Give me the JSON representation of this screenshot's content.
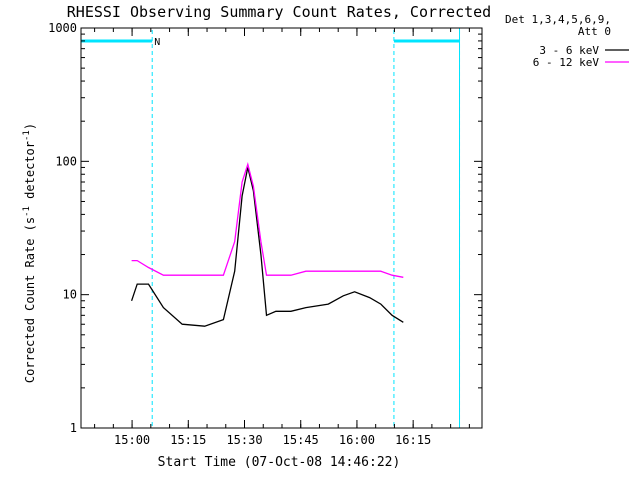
{
  "chart_data": {
    "type": "line",
    "title": "RHESSI Observing Summary Count Rates, Corrected",
    "xlabel": "Start Time (07-Oct-08 14:46:22)",
    "ylabel": "Corrected Count Rate (s⁻¹ detector⁻¹)",
    "ylabel_parts": {
      "a": "Corrected Count Rate (s",
      "b": "-1",
      "c": " detector",
      "d": "-1",
      "e": ")"
    },
    "y_scale": "log",
    "ylim": [
      1,
      1000
    ],
    "xlim_minutes": [
      0,
      107
    ],
    "xticks": [
      {
        "label": "15:00",
        "minute": 13.63
      },
      {
        "label": "15:15",
        "minute": 28.63
      },
      {
        "label": "15:30",
        "minute": 43.63
      },
      {
        "label": "15:45",
        "minute": 58.63
      },
      {
        "label": "16:00",
        "minute": 73.63
      },
      {
        "label": "16:15",
        "minute": 88.63
      }
    ],
    "yticks": [
      {
        "label": "1",
        "value": 1
      },
      {
        "label": "10",
        "value": 10
      },
      {
        "label": "100",
        "value": 100
      },
      {
        "label": "1000",
        "value": 1000
      }
    ],
    "legend_header": [
      "Det 1,3,4,5,6,9,",
      "Att 0"
    ],
    "legend_position": "right",
    "annotations": [
      {
        "text": "N",
        "minute": 19
      }
    ],
    "night_segments": [
      {
        "start_minute": 0,
        "end_minute": 19
      },
      {
        "start_minute": 83.5,
        "end_minute": 101
      }
    ],
    "data_gaps_minutes": [
      [
        -1,
        0
      ],
      [
        101,
        107
      ]
    ],
    "flare_peak_minute": 44.5,
    "series": [
      {
        "name": "3 - 6 keV",
        "color": "#000000",
        "points": [
          [
            13.5,
            9
          ],
          [
            15,
            12
          ],
          [
            18,
            12
          ],
          [
            22,
            8
          ],
          [
            27,
            6
          ],
          [
            33,
            5.8
          ],
          [
            38,
            6.5
          ],
          [
            41,
            15
          ],
          [
            43,
            55
          ],
          [
            44.5,
            90
          ],
          [
            46,
            60
          ],
          [
            48,
            20
          ],
          [
            49.5,
            7
          ],
          [
            52,
            7.5
          ],
          [
            56,
            7.5
          ],
          [
            60,
            8
          ],
          [
            66,
            8.5
          ],
          [
            70,
            9.8
          ],
          [
            73,
            10.5
          ],
          [
            77,
            9.5
          ],
          [
            80,
            8.5
          ],
          [
            83,
            7
          ],
          [
            86,
            6.2
          ]
        ]
      },
      {
        "name": "6 - 12 keV",
        "color": "#ff00ff",
        "points": [
          [
            13.5,
            18
          ],
          [
            15,
            18
          ],
          [
            18,
            16
          ],
          [
            22,
            14
          ],
          [
            27,
            14
          ],
          [
            33,
            14
          ],
          [
            38,
            14
          ],
          [
            41,
            25
          ],
          [
            43,
            70
          ],
          [
            44.5,
            95
          ],
          [
            46,
            65
          ],
          [
            48,
            25
          ],
          [
            49.5,
            14
          ],
          [
            52,
            14
          ],
          [
            56,
            14
          ],
          [
            60,
            15
          ],
          [
            66,
            15
          ],
          [
            70,
            15
          ],
          [
            73,
            15
          ],
          [
            77,
            15
          ],
          [
            80,
            15
          ],
          [
            83,
            14
          ],
          [
            86,
            13.5
          ]
        ]
      }
    ]
  }
}
